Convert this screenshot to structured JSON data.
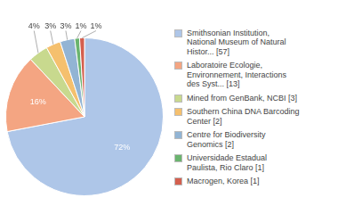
{
  "chart_data": {
    "type": "pie",
    "categories": [
      "Smithsonian Institution,\nNational Museum of Natural\nHistor... [57]",
      "Laboratoire Ecologie,\nEnvironnement, Interactions\ndes Syst... [13]",
      "Mined from GenBank, NCBI [3]",
      "Southern China DNA Barcoding\nCenter [2]",
      "Centre for Biodiversity\nGenomics [2]",
      "Universidade Estadual\nPaulista, Rio Claro [1]",
      "Macrogen, Korea [1]"
    ],
    "values": [
      72,
      16,
      4,
      3,
      3,
      1,
      1
    ],
    "value_labels": [
      "72%",
      "16%",
      "4%",
      "3%",
      "3%",
      "1%",
      "1%"
    ],
    "colors": [
      "#aec6e8",
      "#f4a582",
      "#c8d98e",
      "#f5c06e",
      "#92b4d4",
      "#6ab46e",
      "#d45f4e"
    ],
    "data_labels": true,
    "legend": "right"
  }
}
